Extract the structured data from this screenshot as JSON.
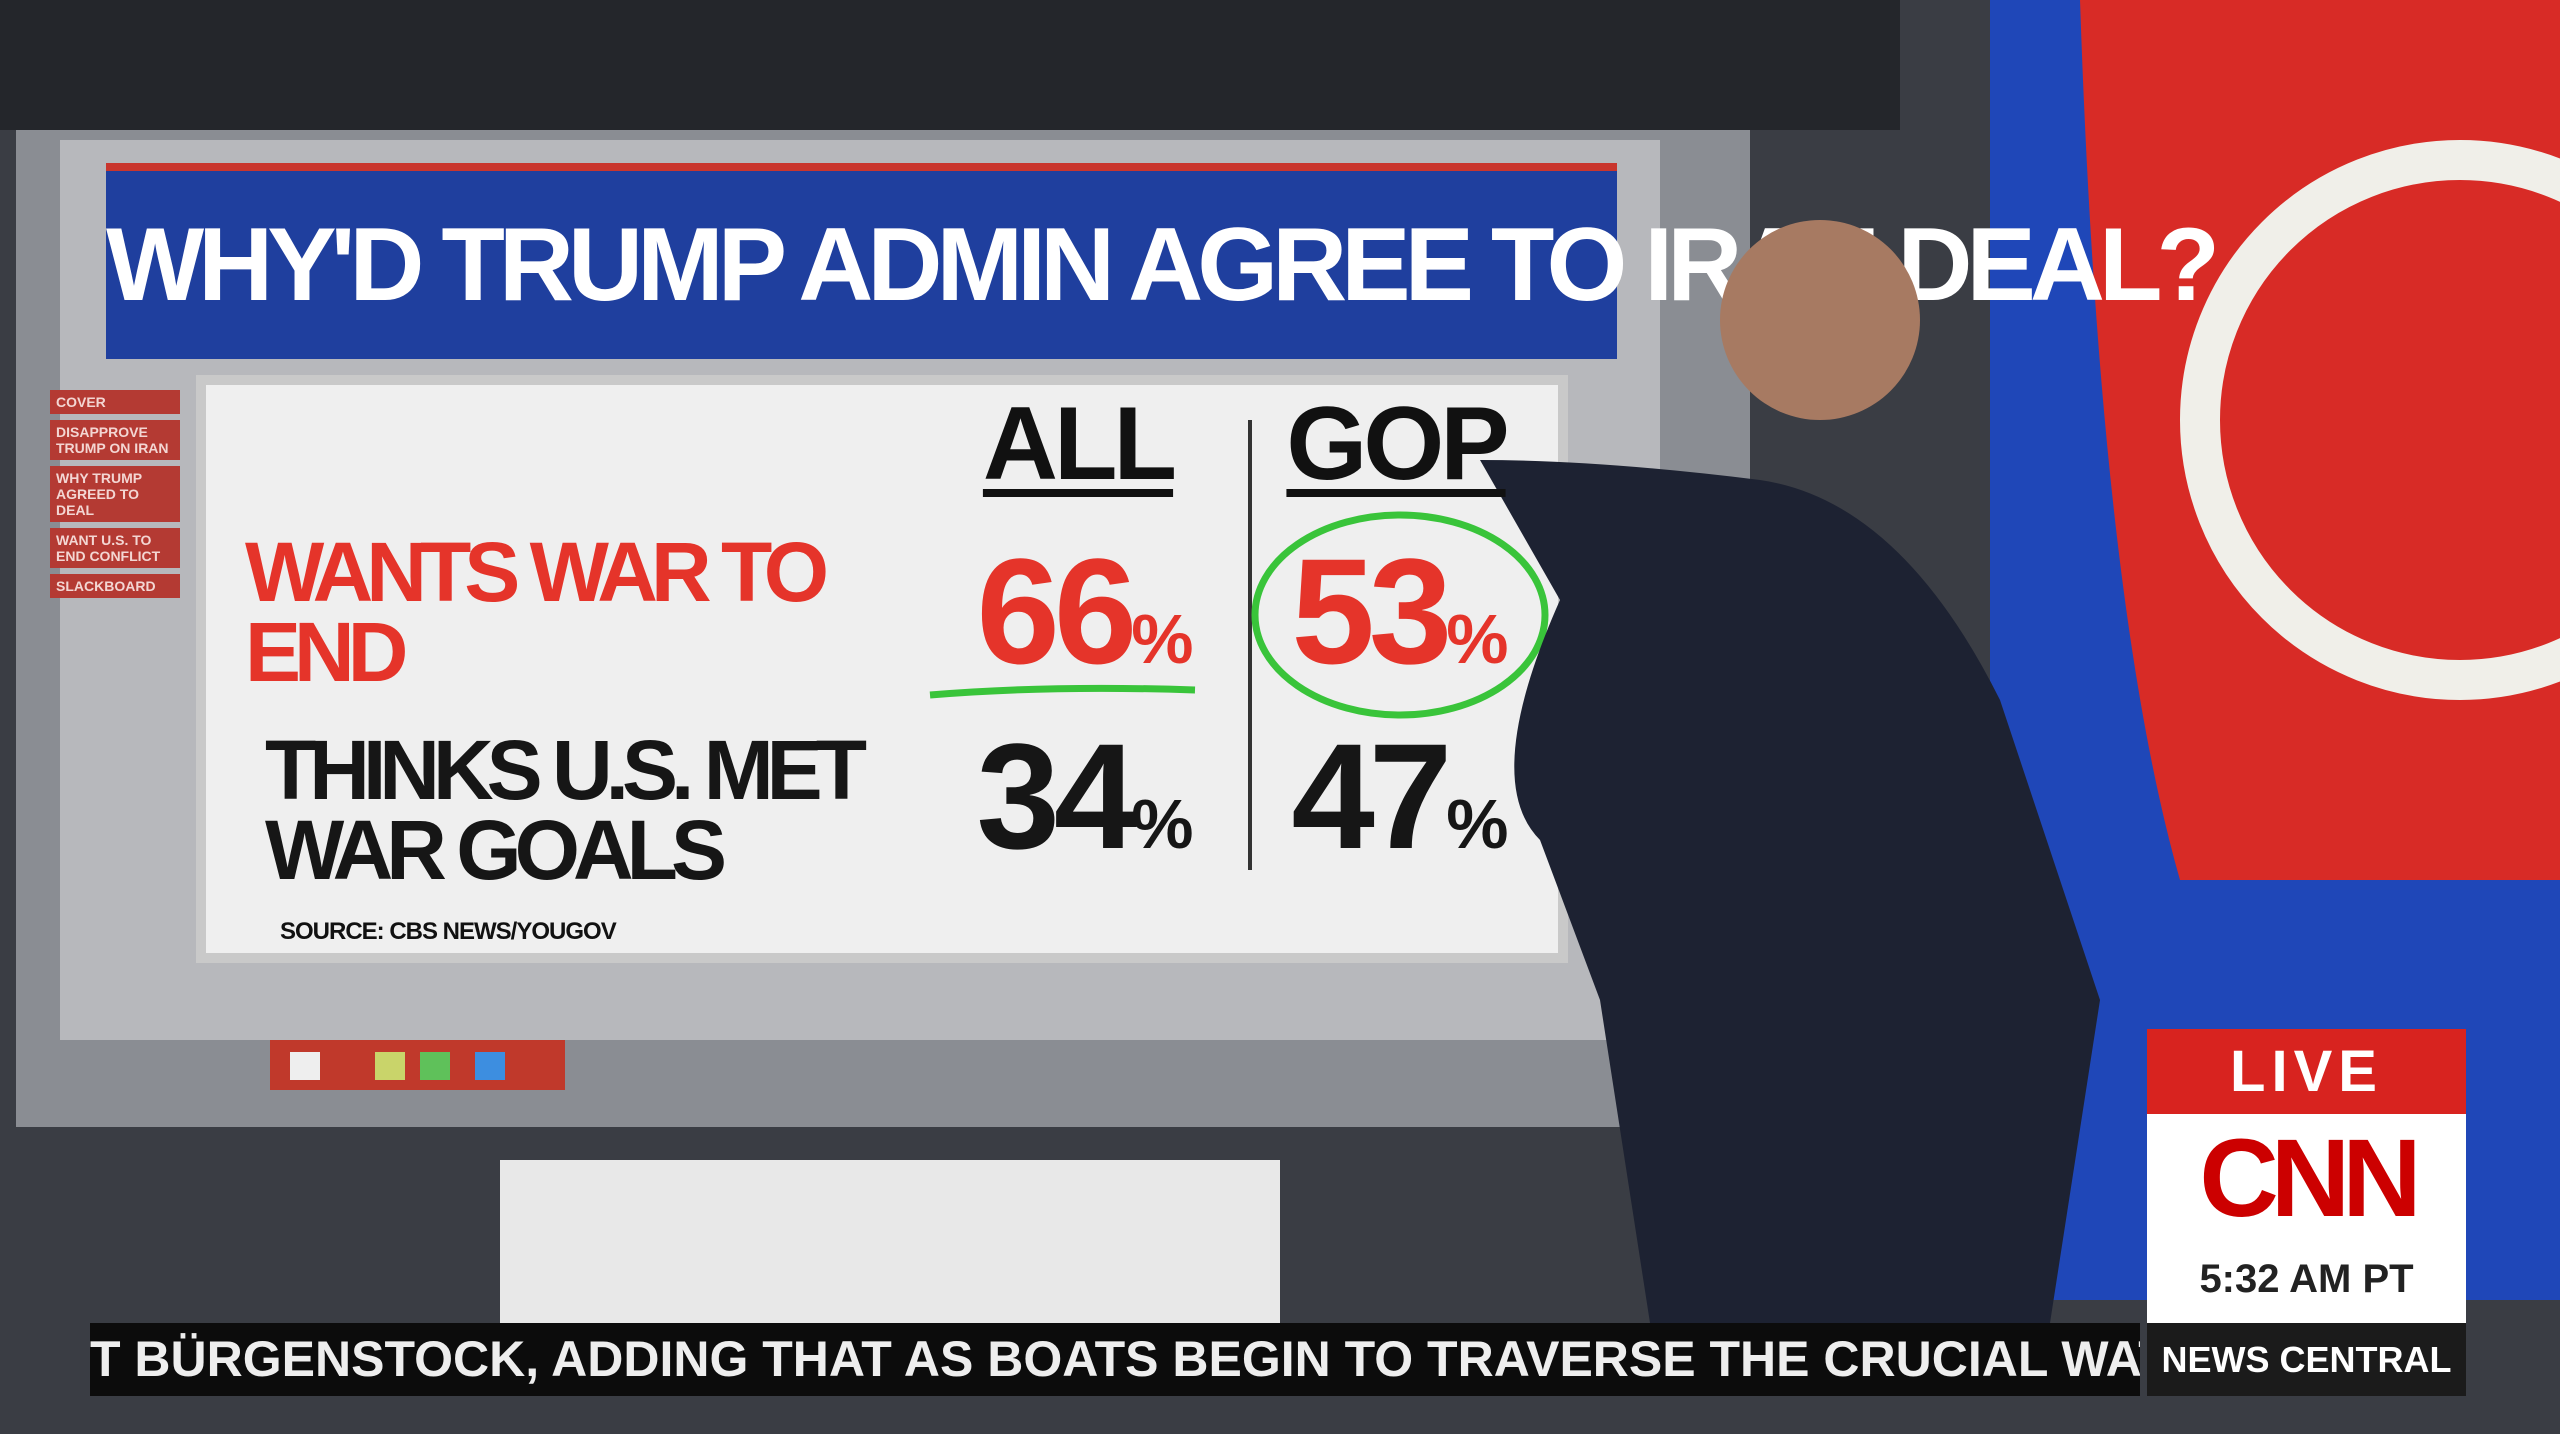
{
  "screen": {
    "title": "WHY'D TRUMP ADMIN AGREE TO IRAN DEAL?",
    "menu": [
      "COVER",
      "DISAPPROVE TRUMP ON IRAN",
      "WHY TRUMP AGREED TO DEAL",
      "WANT U.S. TO END CONFLICT",
      "SLACKBOARD"
    ],
    "columns": [
      "ALL",
      "GOP"
    ],
    "rows": [
      {
        "label": "WANTS WAR TO END",
        "values": [
          66,
          53
        ]
      },
      {
        "label": "THINKS U.S. MET WAR GOALS",
        "values": [
          34,
          47
        ]
      }
    ],
    "unit": "%",
    "source": "SOURCE: CBS NEWS/YOUGOV"
  },
  "ticker": {
    "text": "T BÜRGENSTOCK, ADDING THAT AS BOATS BEGIN TO TRAVERSE THE CRUCIAL WATERW",
    "brand": "NEWS CENTRAL"
  },
  "bug": {
    "live": "LIVE",
    "logo": "CNN",
    "time": "5:32 AM PT"
  }
}
